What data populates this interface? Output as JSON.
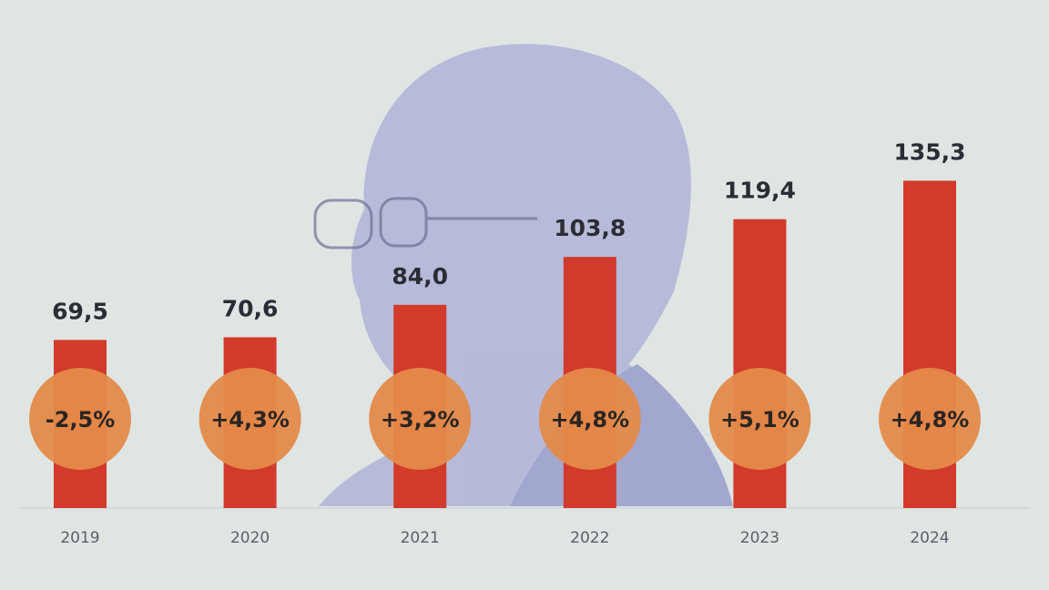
{
  "chart_data": {
    "type": "bar",
    "categories": [
      "2019",
      "2020",
      "2021",
      "2022",
      "2023",
      "2024"
    ],
    "values": [
      69.5,
      70.6,
      84.0,
      103.8,
      119.4,
      135.3
    ],
    "value_labels": [
      "69,5",
      "70,6",
      "84,0",
      "103,8",
      "119,4",
      "135,3"
    ],
    "annotations": [
      "-2,5%",
      "+4,3%",
      "+3,2%",
      "+4,8%",
      "+5,1%",
      "+4,8%"
    ],
    "color": "#d23a2c",
    "annotation_color": "#e48a4a",
    "ylim": [
      0,
      210
    ]
  }
}
